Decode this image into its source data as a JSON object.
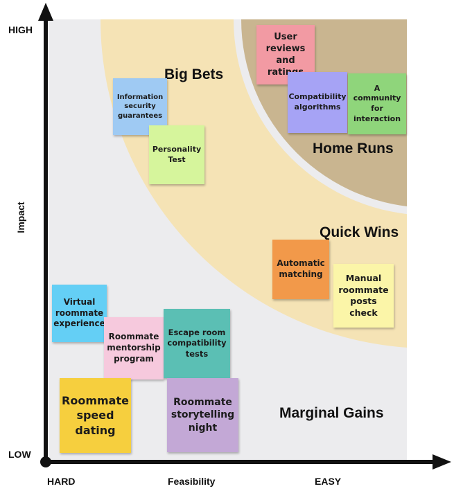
{
  "axes": {
    "y_high": "HIGH",
    "y_low": "LOW",
    "y_title": "Impact",
    "x_hard": "HARD",
    "x_title": "Feasibility",
    "x_easy": "EASY"
  },
  "zones": {
    "big_bets": "Big Bets",
    "home_runs": "Home Runs",
    "quick_wins": "Quick Wins",
    "marginal_gains": "Marginal Gains"
  },
  "colors": {
    "background_panel": "#ececee",
    "outer_band": "#f5e3b5",
    "inner_band": "#c9b590",
    "axis": "#111111"
  },
  "notes": {
    "user_reviews": "User reviews and ratings",
    "compatibility_algorithms": "Compatibility algorithms",
    "community": "A community for interaction",
    "info_security": "Information security guarantees",
    "personality_test": "Personality Test",
    "automatic_matching": "Automatic matching",
    "manual_check": "Manual roommate posts check",
    "virtual_experience": "Virtual roommate experience",
    "mentorship": "Roommate mentorship program",
    "escape_room": "Escape room compatibility tests",
    "speed_dating": "Roommate speed dating",
    "storytelling": "Roommate storytelling night"
  }
}
